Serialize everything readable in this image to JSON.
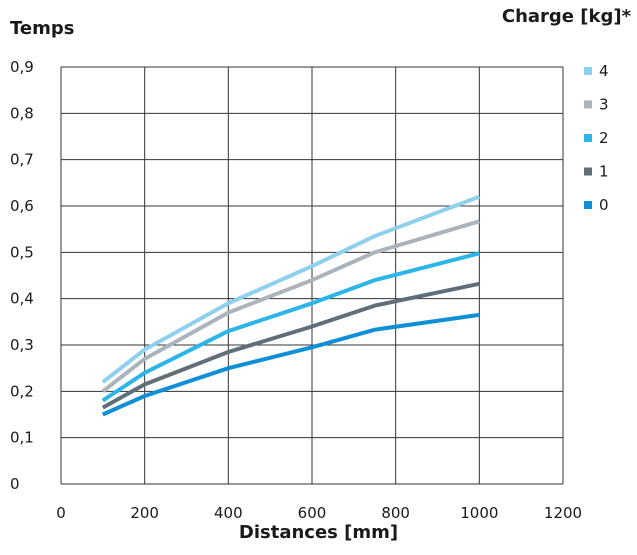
{
  "chart_data": {
    "type": "line",
    "ylabel": "Temps",
    "xlabel": "Distances [mm]",
    "legend_title": "Charge [kg]*",
    "xlim": [
      0,
      1200
    ],
    "ylim": [
      0,
      0.9
    ],
    "x_ticks": [
      "0",
      "200",
      "400",
      "600",
      "800",
      "1000",
      "1200"
    ],
    "y_ticks": [
      "0",
      "0,1",
      "0,2",
      "0,3",
      "0,4",
      "0,5",
      "0,6",
      "0,7",
      "0,8",
      "0,9"
    ],
    "grid": true,
    "legend_position": "right",
    "x": [
      100,
      200,
      400,
      600,
      750,
      1000
    ],
    "series": [
      {
        "name": "4",
        "color": "#8fd0ee",
        "values": [
          0.22,
          0.29,
          0.39,
          0.47,
          0.535,
          0.62
        ]
      },
      {
        "name": "3",
        "color": "#a9b4bc",
        "values": [
          0.2,
          0.27,
          0.37,
          0.44,
          0.5,
          0.567
        ]
      },
      {
        "name": "2",
        "color": "#2cb5e8",
        "values": [
          0.18,
          0.24,
          0.33,
          0.39,
          0.44,
          0.498
        ]
      },
      {
        "name": "1",
        "color": "#5f6f7a",
        "values": [
          0.165,
          0.215,
          0.285,
          0.34,
          0.385,
          0.432
        ]
      },
      {
        "name": "0",
        "color": "#0e8fd6",
        "values": [
          0.15,
          0.19,
          0.25,
          0.295,
          0.333,
          0.365
        ]
      }
    ]
  }
}
